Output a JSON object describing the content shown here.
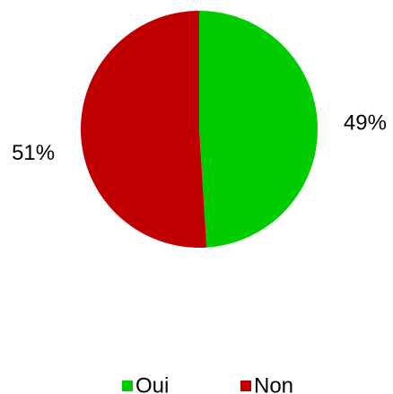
{
  "chart_data": {
    "type": "pie",
    "categories": [
      "Oui",
      "Non"
    ],
    "values": [
      49,
      51
    ],
    "value_labels": [
      "49%",
      "51%"
    ],
    "colors": [
      "#00cc00",
      "#c00000"
    ],
    "legend": "bottom"
  }
}
